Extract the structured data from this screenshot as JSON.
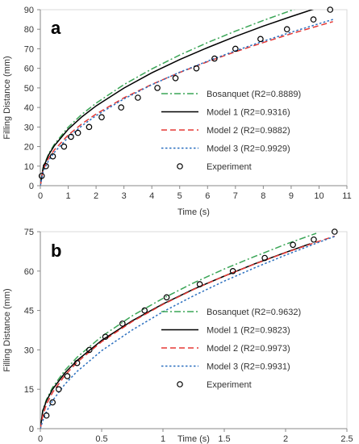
{
  "chart_data": [
    {
      "type": "line",
      "panel_label": "a",
      "xlabel": "Time (s)",
      "ylabel": "Filling Distance (mm)",
      "xlim": [
        0,
        11
      ],
      "ylim": [
        0,
        90
      ],
      "xticks": [
        0,
        1,
        2,
        3,
        4,
        5,
        6,
        7,
        8,
        9,
        10,
        11
      ],
      "yticks": [
        0,
        10,
        20,
        30,
        40,
        50,
        60,
        70,
        80,
        90
      ],
      "legend_position": "center-right",
      "series": [
        {
          "name": "Bosanquet (R2=0.8889)",
          "style": "dashdot",
          "color": "#3aa556",
          "x": [
            0,
            0.1,
            0.3,
            0.5,
            1,
            1.5,
            2,
            3,
            4,
            5,
            6,
            7,
            8,
            9,
            10
          ],
          "y": [
            0,
            9.4,
            16.4,
            21.1,
            29.9,
            36.6,
            42.2,
            51.7,
            59.7,
            66.8,
            73.2,
            79,
            84.5,
            89.6,
            94.4
          ]
        },
        {
          "name": "Model 1 (R2=0.9316)",
          "style": "solid",
          "color": "#000000",
          "x": [
            0,
            0.1,
            0.3,
            0.5,
            1,
            1.5,
            2,
            3,
            4,
            5,
            6,
            7,
            8,
            9,
            10
          ],
          "y": [
            0,
            9.1,
            15.8,
            20.4,
            28.8,
            35.3,
            40.8,
            49.9,
            57.7,
            64.5,
            70.6,
            76.3,
            81.6,
            86.5,
            91.2
          ]
        },
        {
          "name": "Model 2 (R2=0.9882)",
          "style": "dashed",
          "color": "#e53935",
          "x": [
            0,
            0.1,
            0.3,
            0.5,
            1,
            1.5,
            2,
            3,
            4,
            5,
            6,
            7,
            8,
            9,
            10.5
          ],
          "y": [
            0,
            8.2,
            14.2,
            18.3,
            25.9,
            31.7,
            36.6,
            44.9,
            51.8,
            57.9,
            63.4,
            68.5,
            73.2,
            77.7,
            83.9
          ]
        },
        {
          "name": "Model 3 (R2=0.9929)",
          "style": "dotted",
          "color": "#2a6fbf",
          "x": [
            0,
            0.1,
            0.3,
            0.5,
            1,
            1.5,
            2,
            3,
            4,
            5,
            6,
            7,
            8,
            9,
            10.5
          ],
          "y": [
            0,
            7.2,
            13,
            17,
            24.7,
            30.7,
            35.8,
            44.4,
            51.6,
            58,
            63.7,
            69,
            73.9,
            78.5,
            85
          ]
        },
        {
          "name": "Experiment",
          "style": "markers",
          "color": "#000000",
          "x": [
            0.05,
            0.2,
            0.45,
            0.85,
            1.1,
            1.35,
            1.75,
            2.2,
            2.9,
            3.5,
            4.2,
            4.85,
            5.6,
            6.25,
            7,
            7.9,
            8.85,
            9.8,
            10.4
          ],
          "y": [
            5,
            10,
            15,
            20,
            25,
            27,
            30,
            35,
            40,
            45,
            50,
            55,
            60,
            65,
            70,
            75,
            80,
            85,
            90
          ]
        }
      ]
    },
    {
      "type": "line",
      "panel_label": "b",
      "xlabel": "Time (s)",
      "ylabel": "Filling Distance (mm)",
      "xlim": [
        0,
        2.5
      ],
      "ylim": [
        0,
        75
      ],
      "xticks": [
        0,
        0.5,
        1,
        1.5,
        2,
        2.5
      ],
      "xtick_labels": [
        "0",
        "0.5",
        "1",
        "1.5",
        "2",
        "2.5"
      ],
      "yticks": [
        0,
        15,
        30,
        45,
        60,
        75
      ],
      "legend_position": "center-right",
      "series": [
        {
          "name": "Bosanquet (R2=0.9632)",
          "style": "dashdot",
          "color": "#3aa556",
          "x": [
            0,
            0.02,
            0.05,
            0.1,
            0.2,
            0.3,
            0.5,
            0.75,
            1,
            1.25,
            1.5,
            1.75,
            2,
            2.25
          ],
          "y": [
            0,
            7,
            11.1,
            15.7,
            22.2,
            27.2,
            35.1,
            43,
            49.6,
            55.5,
            60.8,
            65.6,
            70.2,
            74.4
          ]
        },
        {
          "name": "Model 1 (R2=0.9823)",
          "style": "solid",
          "color": "#000000",
          "x": [
            0,
            0.02,
            0.05,
            0.1,
            0.2,
            0.3,
            0.5,
            0.75,
            1,
            1.25,
            1.5,
            1.75,
            2,
            2.2
          ],
          "y": [
            0,
            6.7,
            10.6,
            15,
            21.2,
            26,
            33.6,
            41.1,
            47.5,
            53.1,
            58.1,
            62.8,
            67.1,
            70.4
          ]
        },
        {
          "name": "Model 2 (R2=0.9973)",
          "style": "dashed",
          "color": "#e53935",
          "x": [
            0,
            0.02,
            0.05,
            0.1,
            0.2,
            0.3,
            0.5,
            0.75,
            1,
            1.25,
            1.5,
            1.75,
            2,
            2.25,
            2.4
          ],
          "y": [
            0,
            4.8,
            9.3,
            13.8,
            20.3,
            25.3,
            33.1,
            40.8,
            47.3,
            53,
            58.1,
            62.7,
            67,
            71,
            73.3
          ]
        },
        {
          "name": "Model 3 (R2=0.9931)",
          "style": "dotted",
          "color": "#2a6fbf",
          "x": [
            0,
            0.02,
            0.05,
            0.1,
            0.2,
            0.3,
            0.5,
            0.75,
            1,
            1.25,
            1.5,
            1.75,
            2,
            2.25,
            2.4
          ],
          "y": [
            0,
            3,
            6.5,
            10.7,
            16.9,
            21.8,
            29.7,
            37.6,
            44.5,
            50.6,
            56.2,
            61.3,
            66.1,
            70.6,
            73.2
          ]
        },
        {
          "name": "Experiment",
          "style": "markers",
          "color": "#000000",
          "x": [
            0.05,
            0.1,
            0.15,
            0.22,
            0.3,
            0.4,
            0.53,
            0.67,
            0.85,
            1.03,
            1.3,
            1.57,
            1.83,
            2.06,
            2.23,
            2.4
          ],
          "y": [
            5,
            10,
            15,
            20,
            25,
            30,
            35,
            40,
            45,
            50,
            55,
            60,
            65,
            70,
            72,
            75
          ]
        }
      ]
    }
  ]
}
